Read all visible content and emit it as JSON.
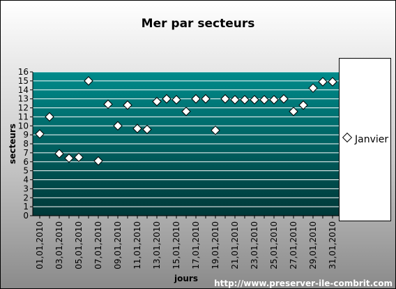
{
  "chart_data": {
    "type": "scatter",
    "title": "Mer par secteurs",
    "xlabel": "jours",
    "ylabel": "secteurs",
    "ylim": [
      0,
      16
    ],
    "yticks": [
      "0",
      "1",
      "2",
      "3",
      "4",
      "5",
      "6",
      "7",
      "8",
      "9",
      "10",
      "11",
      "12",
      "13",
      "14",
      "15",
      "16"
    ],
    "x": [
      "01,01,2010",
      "02,01,2010",
      "03,01,2010",
      "04,01,2010",
      "05,01,2010",
      "06,01,2010",
      "07,01,2010",
      "08,01,2010",
      "09,01,2010",
      "10,01,2010",
      "11,01,2010",
      "12,01,2010",
      "13,01,2010",
      "14,01,2010",
      "15,01,2010",
      "16,01,2010",
      "17,01,2010",
      "18,01,2010",
      "19,01,2010",
      "20,01,2010",
      "21,01,2010",
      "22,01,2010",
      "23,01,2010",
      "24,01,2010",
      "25,01,2010",
      "26,01,2010",
      "27,01,2010",
      "28,01,2010",
      "29,01,2010",
      "30,01,2010",
      "31,01,2010"
    ],
    "xtick_labels": [
      "01,01,2010",
      "03,01,2010",
      "05,01,2010",
      "07,01,2010",
      "09,01,2010",
      "11,01,2010",
      "13,01,2010",
      "15,01,2010",
      "17,01,2010",
      "19,01,2010",
      "21,01,2010",
      "23,01,2010",
      "25,01,2010",
      "27,01,2010",
      "29,01,2010",
      "31,01,2010"
    ],
    "series": [
      {
        "name": "Janvier",
        "values": [
          9.1,
          11.0,
          6.9,
          6.4,
          6.5,
          15.0,
          6.1,
          12.4,
          10.0,
          12.3,
          9.7,
          9.6,
          12.7,
          13.0,
          12.9,
          11.6,
          13.0,
          13.0,
          9.5,
          13.0,
          12.9,
          12.9,
          12.9,
          12.9,
          12.9,
          13.0,
          11.6,
          12.3,
          14.2,
          14.9,
          14.9
        ]
      }
    ],
    "legend_position": "right",
    "grid": true,
    "colors": {
      "plot_top": "#008b8b",
      "plot_bottom": "#003838",
      "gridline": "#ffffff",
      "marker_fill": "#ffffff",
      "marker_stroke": "#000000"
    }
  },
  "footer": {
    "credit": "http://www.preserver-ile-combrit.com"
  }
}
